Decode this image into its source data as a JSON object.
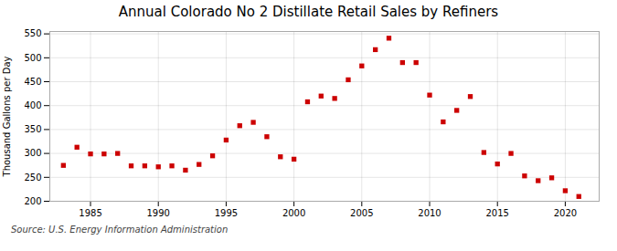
{
  "chart_data": {
    "type": "scatter",
    "title": "Annual Colorado No 2 Distillate Retail Sales by Refiners",
    "ylabel": "Thousand Gallons per Day",
    "annotations": [
      "Source: U.S. Energy Information Administration"
    ],
    "x": [
      1983,
      1984,
      1985,
      1986,
      1987,
      1988,
      1989,
      1990,
      1991,
      1992,
      1993,
      1994,
      1995,
      1996,
      1997,
      1998,
      1999,
      2000,
      2001,
      2002,
      2003,
      2004,
      2005,
      2006,
      2007,
      2008,
      2009,
      2010,
      2011,
      2012,
      2013,
      2014,
      2015,
      2016,
      2017,
      2018,
      2019,
      2020,
      2021
    ],
    "values": [
      275,
      313,
      299,
      299,
      300,
      274,
      274,
      272,
      274,
      265,
      277,
      295,
      328,
      358,
      365,
      335,
      293,
      288,
      408,
      420,
      415,
      454,
      483,
      517,
      541,
      490,
      490,
      422,
      366,
      390,
      419,
      302,
      278,
      300,
      253,
      243,
      249,
      222,
      210
    ],
    "color": "#cc0000",
    "marker": "square",
    "xlim": [
      1982,
      2022.5
    ],
    "xticks": [
      1985,
      1990,
      1995,
      2000,
      2005,
      2010,
      2015,
      2020
    ],
    "ylim": [
      200,
      555
    ],
    "yticks": [
      200,
      250,
      300,
      350,
      400,
      450,
      500,
      550
    ],
    "grid": true
  }
}
